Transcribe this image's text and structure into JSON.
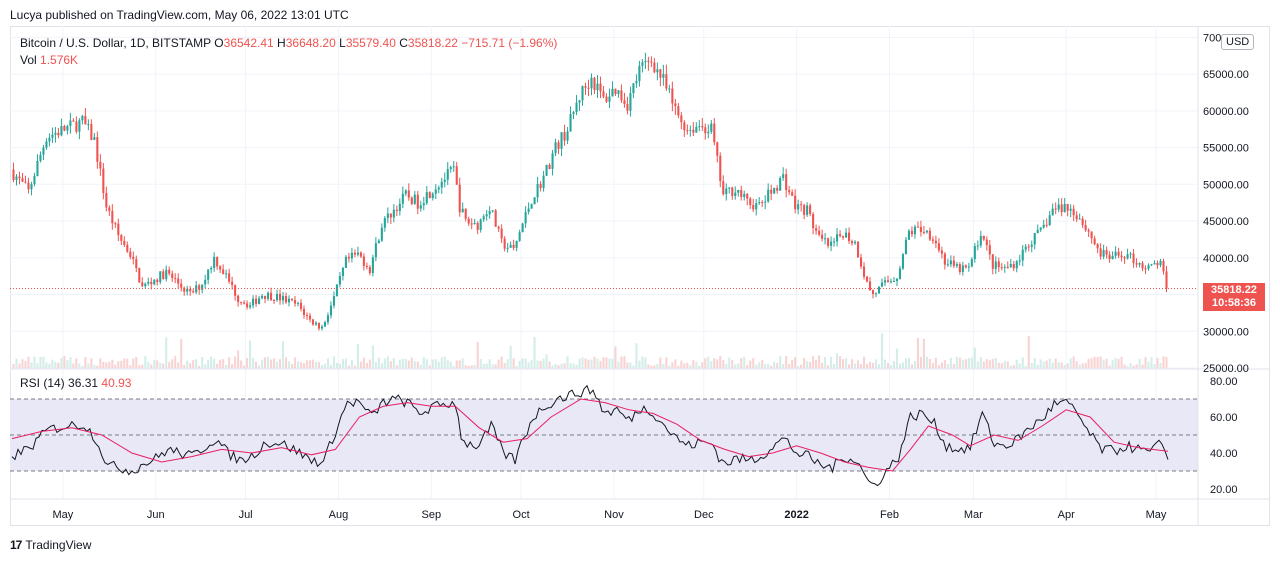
{
  "publisher_line": "Lucya published on TradingView.com, May 06, 2022 13:01 UTC",
  "legend": {
    "symbol": "Bitcoin / U.S. Dollar, 1D, BITSTAMP",
    "o_label": "O",
    "o_value": "36542.41",
    "h_label": "H",
    "h_value": "36648.20",
    "l_label": "L",
    "l_value": "35579.40",
    "c_label": "C",
    "c_value": "35818.22",
    "change": "−715.71 (−1.96%)",
    "vol_label": "Vol",
    "vol_value": "1.576K"
  },
  "rsi_legend": {
    "label": "RSI (14)",
    "value": "36.31",
    "ma_value": "40.93"
  },
  "currency": "USD",
  "last_price": "35818.22",
  "countdown": "10:58:36",
  "brand": "TradingView",
  "colors": {
    "up": "#26a69a",
    "down": "#ef5350",
    "rsi": "#131722",
    "rsi_ma": "#e91e63",
    "band": "#d1d4f0",
    "grid": "#f0f3fa",
    "volume": "#e0e3eb"
  },
  "chart_data": [
    {
      "type": "candlestick",
      "title": "Bitcoin / U.S. Dollar, 1D, BITSTAMP",
      "ylabel": "USD",
      "ylim": [
        25000,
        71000
      ],
      "y_ticks": [
        "25000.00",
        "30000.00",
        "35000.00",
        "40000.00",
        "45000.00",
        "50000.00",
        "55000.00",
        "60000.00",
        "65000.00",
        "70000.00"
      ],
      "x_ticks": [
        "May",
        "Jun",
        "Jul",
        "Aug",
        "Sep",
        "Oct",
        "Nov",
        "Dec",
        "2022",
        "Feb",
        "Mar",
        "Apr",
        "May"
      ],
      "x_tick_day_index": [
        17,
        48,
        78,
        109,
        140,
        170,
        201,
        231,
        262,
        293,
        321,
        352,
        382
      ],
      "day_count": 386,
      "close_anchors": [
        [
          0,
          52000
        ],
        [
          6,
          49000
        ],
        [
          12,
          56500
        ],
        [
          18,
          57500
        ],
        [
          24,
          58500
        ],
        [
          28,
          56000
        ],
        [
          32,
          47000
        ],
        [
          36,
          43000
        ],
        [
          40,
          40500
        ],
        [
          44,
          36000
        ],
        [
          48,
          37000
        ],
        [
          52,
          38000
        ],
        [
          56,
          36500
        ],
        [
          60,
          35000
        ],
        [
          64,
          36500
        ],
        [
          68,
          40000
        ],
        [
          72,
          37500
        ],
        [
          76,
          34500
        ],
        [
          80,
          33500
        ],
        [
          84,
          35000
        ],
        [
          88,
          34800
        ],
        [
          92,
          34200
        ],
        [
          96,
          33500
        ],
        [
          100,
          31500
        ],
        [
          104,
          30500
        ],
        [
          108,
          34500
        ],
        [
          112,
          39500
        ],
        [
          116,
          40500
        ],
        [
          120,
          38500
        ],
        [
          124,
          44500
        ],
        [
          128,
          46500
        ],
        [
          132,
          48500
        ],
        [
          136,
          47500
        ],
        [
          140,
          49000
        ],
        [
          144,
          50500
        ],
        [
          148,
          52000
        ],
        [
          150,
          47000
        ],
        [
          152,
          45000
        ],
        [
          156,
          44500
        ],
        [
          160,
          47000
        ],
        [
          164,
          42000
        ],
        [
          168,
          41000
        ],
        [
          170,
          43500
        ],
        [
          174,
          48000
        ],
        [
          178,
          51000
        ],
        [
          182,
          55000
        ],
        [
          186,
          57500
        ],
        [
          190,
          62000
        ],
        [
          194,
          64500
        ],
        [
          198,
          61500
        ],
        [
          202,
          63000
        ],
        [
          206,
          61000
        ],
        [
          210,
          65500
        ],
        [
          214,
          67000
        ],
        [
          218,
          64000
        ],
        [
          222,
          60000
        ],
        [
          226,
          57500
        ],
        [
          230,
          58000
        ],
        [
          234,
          57500
        ],
        [
          236,
          53000
        ],
        [
          238,
          48500
        ],
        [
          242,
          49500
        ],
        [
          246,
          47500
        ],
        [
          250,
          47000
        ],
        [
          254,
          49000
        ],
        [
          258,
          51000
        ],
        [
          262,
          47000
        ],
        [
          266,
          46500
        ],
        [
          270,
          42500
        ],
        [
          274,
          41500
        ],
        [
          278,
          43500
        ],
        [
          282,
          42000
        ],
        [
          286,
          36500
        ],
        [
          288,
          35000
        ],
        [
          292,
          36500
        ],
        [
          296,
          37500
        ],
        [
          300,
          43500
        ],
        [
          304,
          44000
        ],
        [
          308,
          43000
        ],
        [
          312,
          39500
        ],
        [
          316,
          38500
        ],
        [
          320,
          38500
        ],
        [
          324,
          43500
        ],
        [
          328,
          39000
        ],
        [
          332,
          38500
        ],
        [
          336,
          39500
        ],
        [
          340,
          42000
        ],
        [
          344,
          43500
        ],
        [
          348,
          46500
        ],
        [
          352,
          47000
        ],
        [
          356,
          46000
        ],
        [
          360,
          43500
        ],
        [
          364,
          40500
        ],
        [
          368,
          40000
        ],
        [
          372,
          40500
        ],
        [
          376,
          39500
        ],
        [
          380,
          38500
        ],
        [
          384,
          39500
        ],
        [
          386,
          35818
        ]
      ],
      "last_close": 35818.22
    },
    {
      "type": "line",
      "title": "RSI (14)",
      "ylim": [
        15,
        85
      ],
      "y_ticks": [
        "20.00",
        "40.00",
        "60.00",
        "80.00"
      ],
      "band": [
        30,
        70
      ],
      "midline": 50,
      "series": [
        {
          "name": "RSI",
          "points": [
            [
              0,
              38
            ],
            [
              6,
              43
            ],
            [
              12,
              53
            ],
            [
              18,
              55
            ],
            [
              24,
              56
            ],
            [
              28,
              48
            ],
            [
              32,
              33
            ],
            [
              36,
              32
            ],
            [
              40,
              30
            ],
            [
              44,
              34
            ],
            [
              48,
              37
            ],
            [
              52,
              42
            ],
            [
              56,
              40
            ],
            [
              60,
              38
            ],
            [
              64,
              43
            ],
            [
              68,
              48
            ],
            [
              72,
              40
            ],
            [
              76,
              36
            ],
            [
              80,
              38
            ],
            [
              84,
              45
            ],
            [
              88,
              46
            ],
            [
              92,
              44
            ],
            [
              96,
              40
            ],
            [
              100,
              36
            ],
            [
              104,
              35
            ],
            [
              108,
              52
            ],
            [
              112,
              68
            ],
            [
              116,
              68
            ],
            [
              120,
              60
            ],
            [
              124,
              68
            ],
            [
              128,
              70
            ],
            [
              132,
              68
            ],
            [
              136,
              62
            ],
            [
              140,
              65
            ],
            [
              144,
              67
            ],
            [
              148,
              68
            ],
            [
              150,
              50
            ],
            [
              152,
              45
            ],
            [
              156,
              44
            ],
            [
              160,
              55
            ],
            [
              164,
              40
            ],
            [
              168,
              36
            ],
            [
              170,
              45
            ],
            [
              174,
              60
            ],
            [
              178,
              66
            ],
            [
              182,
              70
            ],
            [
              186,
              72
            ],
            [
              190,
              74
            ],
            [
              194,
              75
            ],
            [
              198,
              62
            ],
            [
              202,
              64
            ],
            [
              206,
              58
            ],
            [
              210,
              65
            ],
            [
              214,
              63
            ],
            [
              218,
              55
            ],
            [
              222,
              48
            ],
            [
              226,
              44
            ],
            [
              230,
              46
            ],
            [
              234,
              45
            ],
            [
              236,
              38
            ],
            [
              238,
              34
            ],
            [
              242,
              37
            ],
            [
              246,
              36
            ],
            [
              250,
              38
            ],
            [
              254,
              44
            ],
            [
              258,
              48
            ],
            [
              262,
              40
            ],
            [
              266,
              38
            ],
            [
              270,
              33
            ],
            [
              274,
              32
            ],
            [
              278,
              38
            ],
            [
              282,
              36
            ],
            [
              286,
              24
            ],
            [
              288,
              22
            ],
            [
              292,
              30
            ],
            [
              296,
              38
            ],
            [
              300,
              60
            ],
            [
              304,
              62
            ],
            [
              308,
              56
            ],
            [
              312,
              44
            ],
            [
              316,
              42
            ],
            [
              320,
              43
            ],
            [
              324,
              62
            ],
            [
              328,
              45
            ],
            [
              332,
              44
            ],
            [
              336,
              48
            ],
            [
              340,
              54
            ],
            [
              344,
              59
            ],
            [
              348,
              67
            ],
            [
              352,
              68
            ],
            [
              356,
              61
            ],
            [
              360,
              50
            ],
            [
              364,
              42
            ],
            [
              368,
              41
            ],
            [
              372,
              44
            ],
            [
              376,
              42
            ],
            [
              380,
              40
            ],
            [
              384,
              46
            ],
            [
              386,
              36.31
            ]
          ]
        },
        {
          "name": "RSI MA",
          "points": [
            [
              0,
              48
            ],
            [
              10,
              52
            ],
            [
              20,
              54
            ],
            [
              30,
              50
            ],
            [
              40,
              40
            ],
            [
              50,
              35
            ],
            [
              60,
              38
            ],
            [
              70,
              42
            ],
            [
              80,
              40
            ],
            [
              90,
              43
            ],
            [
              100,
              39
            ],
            [
              108,
              42
            ],
            [
              116,
              60
            ],
            [
              124,
              66
            ],
            [
              132,
              68
            ],
            [
              140,
              66
            ],
            [
              148,
              66
            ],
            [
              156,
              54
            ],
            [
              164,
              46
            ],
            [
              172,
              48
            ],
            [
              180,
              60
            ],
            [
              190,
              70
            ],
            [
              198,
              68
            ],
            [
              206,
              64
            ],
            [
              214,
              62
            ],
            [
              222,
              56
            ],
            [
              230,
              47
            ],
            [
              238,
              42
            ],
            [
              246,
              38
            ],
            [
              254,
              40
            ],
            [
              262,
              44
            ],
            [
              270,
              40
            ],
            [
              278,
              35
            ],
            [
              286,
              32
            ],
            [
              294,
              30
            ],
            [
              300,
              42
            ],
            [
              306,
              55
            ],
            [
              314,
              50
            ],
            [
              320,
              44
            ],
            [
              328,
              50
            ],
            [
              336,
              47
            ],
            [
              344,
              55
            ],
            [
              352,
              64
            ],
            [
              360,
              60
            ],
            [
              368,
              46
            ],
            [
              376,
              43
            ],
            [
              386,
              40.93
            ]
          ]
        }
      ]
    }
  ]
}
